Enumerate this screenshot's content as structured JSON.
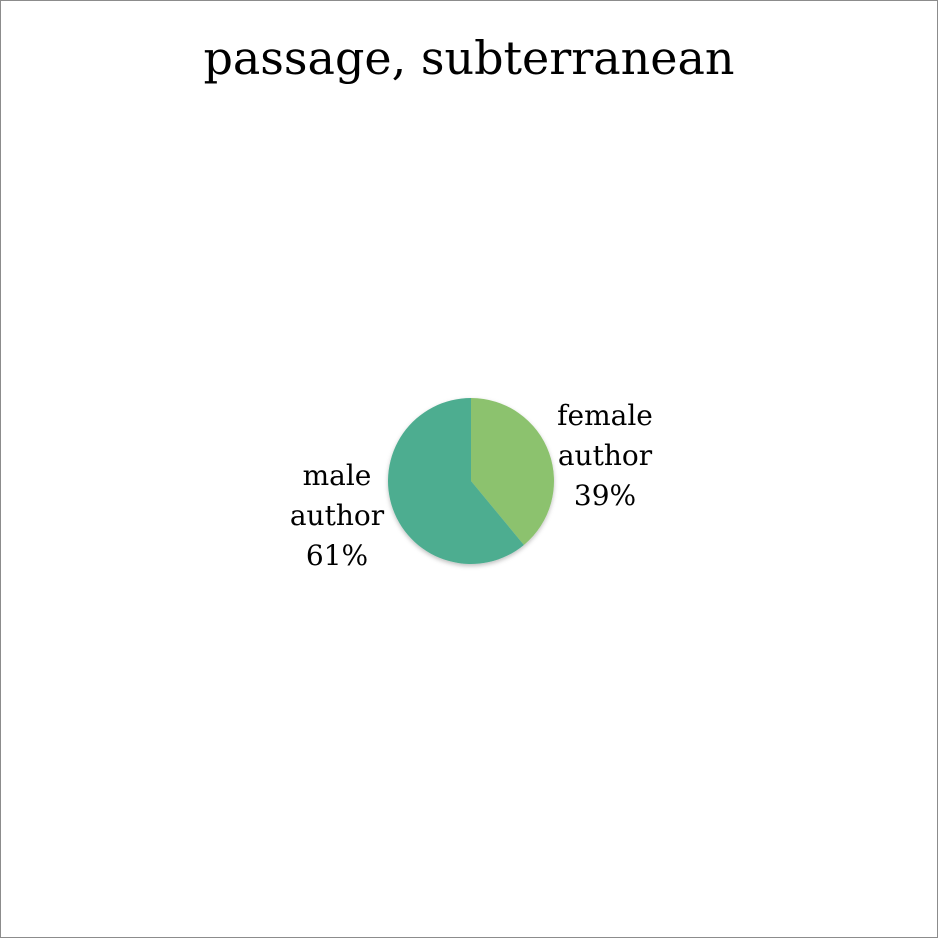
{
  "chart_data": {
    "type": "pie",
    "title": "passage, subterranean",
    "slices": [
      {
        "name": "female author",
        "label_lines": [
          "female",
          "author",
          "39%"
        ],
        "value": 39,
        "color": "#8cc26e"
      },
      {
        "name": "male author",
        "label_lines": [
          "male",
          "author",
          "61%"
        ],
        "value": 61,
        "color": "#4ead90"
      }
    ],
    "legend": "none"
  }
}
